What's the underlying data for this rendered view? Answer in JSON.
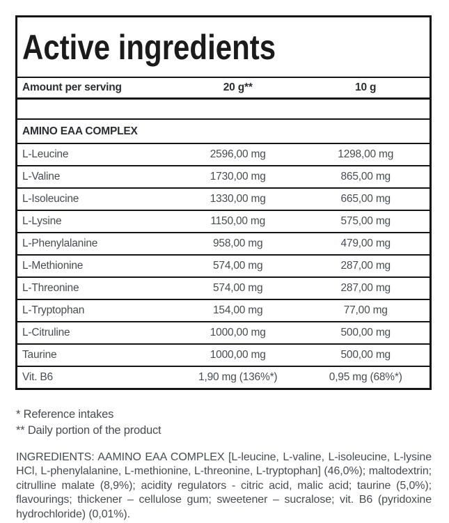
{
  "panel": {
    "title": "Active ingredients",
    "header": {
      "col1": "Amount per serving",
      "col2": "20 g**",
      "col3": "10 g"
    },
    "section": "AMINO EAA COMPLEX",
    "rows": [
      {
        "name": "L-Leucine",
        "per20": "2596,00 mg",
        "per10": "1298,00 mg"
      },
      {
        "name": "L-Valine",
        "per20": "1730,00 mg",
        "per10": "865,00 mg"
      },
      {
        "name": "L-Isoleucine",
        "per20": "1330,00 mg",
        "per10": "665,00 mg"
      },
      {
        "name": "L-Lysine",
        "per20": "1150,00 mg",
        "per10": "575,00 mg"
      },
      {
        "name": "L-Phenylalanine",
        "per20": "958,00 mg",
        "per10": "479,00 mg"
      },
      {
        "name": "L-Methionine",
        "per20": "574,00 mg",
        "per10": "287,00 mg"
      },
      {
        "name": "L-Threonine",
        "per20": "574,00 mg",
        "per10": "287,00 mg"
      },
      {
        "name": "L-Tryptophan",
        "per20": "154,00 mg",
        "per10": "77,00 mg"
      },
      {
        "name": "L-Citruline",
        "per20": "1000,00 mg",
        "per10": "500,00 mg"
      },
      {
        "name": "Taurine",
        "per20": "1000,00 mg",
        "per10": "500,00 mg"
      },
      {
        "name": "Vit. B6",
        "per20": "1,90 mg (136%*)",
        "per10": "0,95 mg (68%*)"
      }
    ]
  },
  "footnotes": {
    "line1": "* Reference intakes",
    "line2": "** Daily portion of the product"
  },
  "ingredients_text": "INGREDIENTS: AAMINO EAA COMPLEX [L-leucine, L-valine, L-isoleucine, L-lysine HCl, L-phenylalanine, L-methionine, L-threonine, L-tryptophan] (46,0%); maltodextrin; citrulline malate (8,9%); acidity regulators - citric acid, malic acid; taurine (5,0%); flavourings; thickener – cellulose gum; sweetener – sucralose; vit. B6 (pyridoxine hydrochloride) (0,01%).",
  "colors": {
    "border": "#141414",
    "heading_text": "#1b1b1b",
    "body_text": "#474c53",
    "background": "#ffffff"
  }
}
